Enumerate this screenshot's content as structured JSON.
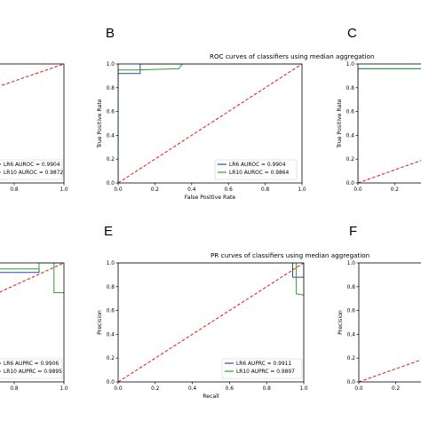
{
  "chart_data": [
    {
      "id": "A",
      "type": "line",
      "panel_label": "",
      "title": "...ode aggregation",
      "xlabel": "",
      "ylabel": "",
      "xlim": [
        0,
        1
      ],
      "ylim": [
        0,
        1
      ],
      "xticks": [
        "0.8",
        "1.0"
      ],
      "yticks": [],
      "legend_position": "lower-right",
      "series": [
        {
          "name": "LR6 AUROC = 0.9904",
          "color": "#3044b0",
          "x": [],
          "y": []
        },
        {
          "name": "LR10 AUROC = 0.9872",
          "color": "#2ca02c",
          "x": [],
          "y": []
        },
        {
          "name": "",
          "color": "#e8281e",
          "dashed": true,
          "x": [
            0,
            1
          ],
          "y": [
            0.28,
            1
          ]
        }
      ]
    },
    {
      "id": "B",
      "type": "line",
      "panel_label": "B",
      "title": "ROC curves of classifiers using median aggregation",
      "xlabel": "False Positive Rate",
      "ylabel": "True Positive Rate",
      "xlim": [
        0,
        1
      ],
      "ylim": [
        0,
        1
      ],
      "xticks": [
        "0.0",
        "0.2",
        "0.4",
        "0.6",
        "0.8",
        "1.0"
      ],
      "yticks": [
        "0.0",
        "0.2",
        "0.4",
        "0.6",
        "0.8",
        "1.0"
      ],
      "legend_position": "lower-right",
      "series": [
        {
          "name": "LR6 AUROC = 0.9904",
          "color": "#3044b0",
          "x": [
            0,
            0,
            0.12,
            0.12,
            1
          ],
          "y": [
            0,
            0.92,
            0.92,
            1,
            1
          ]
        },
        {
          "name": "LR10 AUROC = 0.9864",
          "color": "#2ca02c",
          "x": [
            0,
            0,
            0.1,
            0.33,
            0.35,
            1
          ],
          "y": [
            0,
            0.95,
            0.95,
            0.96,
            1,
            1
          ]
        },
        {
          "name": "",
          "color": "#e8281e",
          "dashed": true,
          "x": [
            0,
            1
          ],
          "y": [
            0,
            1
          ]
        }
      ]
    },
    {
      "id": "C",
      "type": "line",
      "panel_label": "C",
      "title": "ROC curves of c...",
      "xlabel": "",
      "ylabel": "True Positive Rate",
      "xlim": [
        0,
        1
      ],
      "ylim": [
        0,
        1
      ],
      "xticks": [
        "0.0",
        "0.2"
      ],
      "yticks": [
        "0.0",
        "0.2",
        "0.4",
        "0.6",
        "0.8",
        "1.0"
      ],
      "legend_position": "lower-right",
      "series": [
        {
          "name": "",
          "color": "#3044b0",
          "x": [
            0,
            0,
            0.4,
            0.4,
            1
          ],
          "y": [
            0,
            0.96,
            0.96,
            1,
            1
          ]
        },
        {
          "name": "",
          "color": "#2ca02c",
          "x": [
            0,
            0,
            1
          ],
          "y": [
            0,
            0.96,
            0.96
          ]
        },
        {
          "name": "",
          "color": "#e8281e",
          "dashed": true,
          "x": [
            0,
            1
          ],
          "y": [
            0,
            0.55
          ]
        }
      ]
    },
    {
      "id": "D",
      "type": "line",
      "panel_label": "",
      "title": "...ode aggregation",
      "xlabel": "",
      "ylabel": "",
      "xlim": [
        0,
        1
      ],
      "ylim": [
        0,
        1
      ],
      "xticks": [
        "0.8",
        "1.0"
      ],
      "yticks": [],
      "legend_position": "lower-right",
      "series": [
        {
          "name": "LR6 AUPRC = 0.9906",
          "color": "#3044b0",
          "x": [
            0,
            0.5,
            0.5,
            0.9,
            0.9,
            1
          ],
          "y": [
            1,
            1,
            0.92,
            0.92,
            1,
            1
          ]
        },
        {
          "name": "LR10 AUPRC = 0.9895",
          "color": "#2ca02c",
          "x": [
            0,
            0.6,
            0.6,
            0.9,
            0.9,
            0.96,
            0.96,
            1
          ],
          "y": [
            1,
            1,
            0.95,
            0.95,
            1,
            1,
            0.75,
            0.75
          ]
        },
        {
          "name": "",
          "color": "#e8281e",
          "dashed": true,
          "x": [
            0,
            1
          ],
          "y": [
            0.05,
            1
          ]
        }
      ]
    },
    {
      "id": "E",
      "type": "line",
      "panel_label": "E",
      "title": "PR curves of classifiers using median aggregation",
      "xlabel": "Recall",
      "ylabel": "Precision",
      "xlim": [
        0,
        1
      ],
      "ylim": [
        0,
        1
      ],
      "xticks": [
        "0.0",
        "0.2",
        "0.4",
        "0.6",
        "0.8",
        "1.0"
      ],
      "yticks": [
        "0.0",
        "0.2",
        "0.4",
        "0.6",
        "0.8",
        "1.0"
      ],
      "legend_position": "lower-right",
      "series": [
        {
          "name": "LR6 AUPRC = 0.9911",
          "color": "#3044b0",
          "x": [
            0,
            0.94,
            0.94,
            1,
            1
          ],
          "y": [
            1,
            1,
            0.88,
            0.88,
            1
          ]
        },
        {
          "name": "LR10 AUPRC = 0.9897",
          "color": "#2ca02c",
          "x": [
            0,
            0.96,
            0.96,
            1
          ],
          "y": [
            1,
            1,
            0.74,
            0.73
          ]
        },
        {
          "name": "",
          "color": "#e8281e",
          "dashed": true,
          "x": [
            0,
            1
          ],
          "y": [
            0,
            1
          ]
        }
      ]
    },
    {
      "id": "F",
      "type": "line",
      "panel_label": "F",
      "title": "PR curves of cla...",
      "xlabel": "",
      "ylabel": "Precision",
      "xlim": [
        0,
        1
      ],
      "ylim": [
        0,
        1
      ],
      "xticks": [
        "0.0",
        "0.2"
      ],
      "yticks": [
        "0.0",
        "0.2",
        "0.4",
        "0.6",
        "0.8",
        "1.0"
      ],
      "legend_position": "lower-right",
      "series": [
        {
          "name": "",
          "color": "#e8281e",
          "dashed": true,
          "x": [
            0,
            1
          ],
          "y": [
            0,
            0.55
          ]
        }
      ]
    }
  ]
}
